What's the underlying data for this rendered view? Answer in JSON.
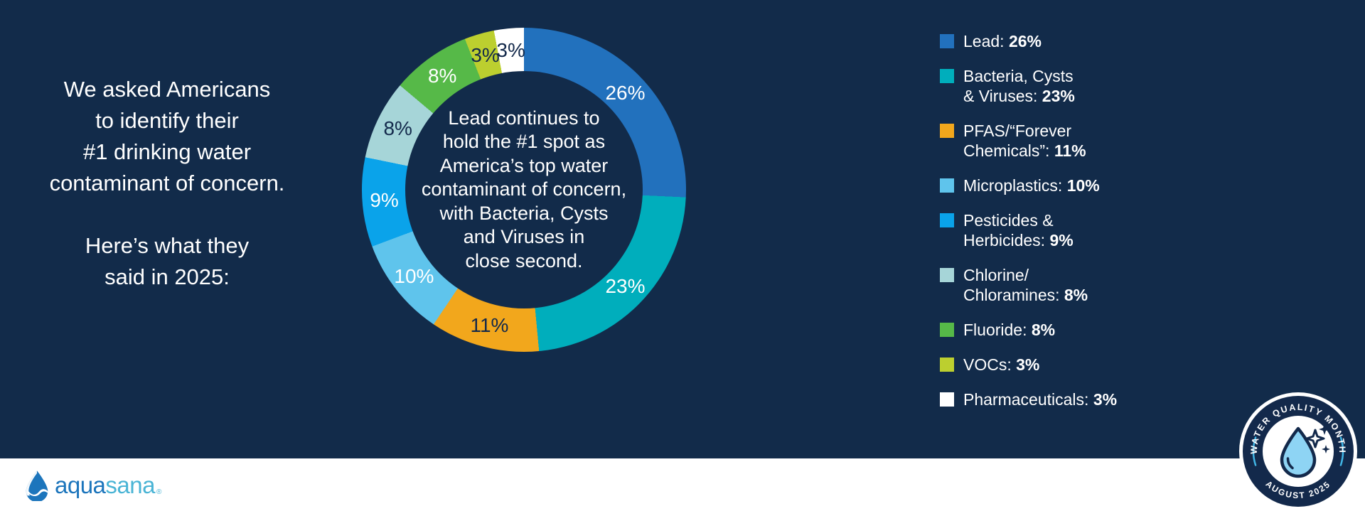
{
  "intro": {
    "paragraph1": "We asked Americans\nto identify their\n#1 drinking water\ncontaminant of concern.",
    "paragraph2": "Here’s what they\nsaid in 2025:"
  },
  "chart_data": {
    "type": "donut",
    "title": "#1 drinking water contaminant of concern, 2025",
    "center_text": "Lead continues to\nhold the #1 spot as\nAmerica’s top water\ncontaminant of concern,\nwith Bacteria, Cysts\nand Viruses in\nclose second.",
    "start_angle_deg": 0,
    "direction": "clockwise",
    "slices": [
      {
        "label": "Lead",
        "value": 26,
        "display": "26%",
        "color": "#2271BD",
        "label_color": "#FFFFFF"
      },
      {
        "label": "Bacteria, Cysts & Viruses",
        "value": 23,
        "display": "23%",
        "color": "#00AEBC",
        "label_color": "#FFFFFF"
      },
      {
        "label": "PFAS/“Forever Chemicals”",
        "value": 11,
        "display": "11%",
        "color": "#F2A71C",
        "label_color": "#13294B"
      },
      {
        "label": "Microplastics",
        "value": 10,
        "display": "10%",
        "color": "#5FC4EC",
        "label_color": "#FFFFFF"
      },
      {
        "label": "Pesticides & Herbicides",
        "value": 9,
        "display": "9%",
        "color": "#0AA3EA",
        "label_color": "#FFFFFF"
      },
      {
        "label": "Chlorine/Chloramines",
        "value": 8,
        "display": "8%",
        "color": "#A6D5D8",
        "label_color": "#13294B"
      },
      {
        "label": "Fluoride",
        "value": 8,
        "display": "8%",
        "color": "#56B948",
        "label_color": "#FFFFFF"
      },
      {
        "label": "VOCs",
        "value": 3,
        "display": "3%",
        "color": "#BCCF2F",
        "label_color": "#13294B"
      },
      {
        "label": "Pharmaceuticals",
        "value": 3,
        "display": "3%",
        "color": "#FFFFFF",
        "label_color": "#13294B"
      }
    ]
  },
  "legend": {
    "items": [
      {
        "label": "Lead:",
        "value": "26%"
      },
      {
        "label": "Bacteria, Cysts\n& Viruses:",
        "value": "23%"
      },
      {
        "label": "PFAS/“Forever\nChemicals”:",
        "value": "11%"
      },
      {
        "label": "Microplastics:",
        "value": "10%"
      },
      {
        "label": "Pesticides &\nHerbicides:",
        "value": "9%"
      },
      {
        "label": "Chlorine/\nChloramines:",
        "value": "8%"
      },
      {
        "label": "Fluoride:",
        "value": "8%"
      },
      {
        "label": "VOCs:",
        "value": "3%"
      },
      {
        "label": "Pharmaceuticals:",
        "value": "3%"
      }
    ]
  },
  "logo": {
    "aqua": "aqua",
    "sana": "sana",
    "mark": "®"
  },
  "badge": {
    "top_text": "WATER QUALITY MONTH",
    "bottom_text": "AUGUST 2025"
  },
  "colors": {
    "background": "#122B4A",
    "navy": "#13294B",
    "white": "#FFFFFF",
    "badge_accent_blue": "#41B6E6",
    "logo_blue": "#1C75BC",
    "logo_teal": "#4AB4D5"
  }
}
